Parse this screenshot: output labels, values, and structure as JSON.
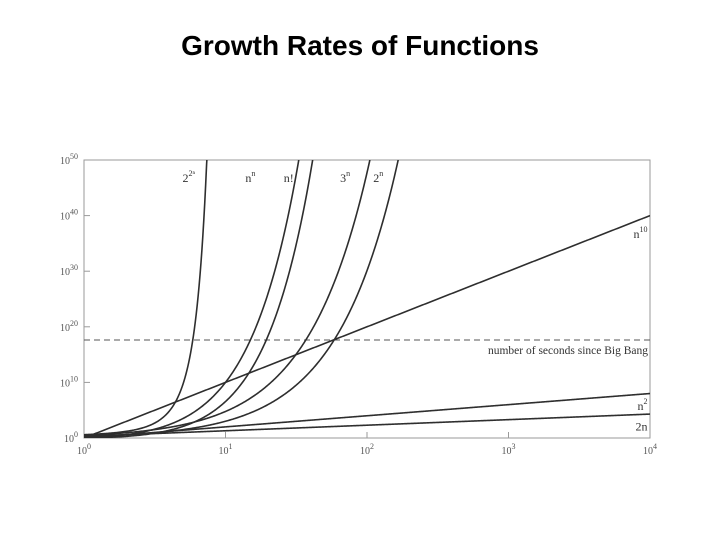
{
  "title": "Growth Rates of Functions",
  "chart_data": {
    "type": "line",
    "title": "Growth Rates of Functions",
    "xlabel": "",
    "ylabel": "",
    "xscale": "log",
    "yscale": "log",
    "xlim": [
      1,
      10000
    ],
    "ylim": [
      1,
      1e+50
    ],
    "x_ticks": [
      {
        "base": "10",
        "exp": "0",
        "value": 1
      },
      {
        "base": "10",
        "exp": "1",
        "value": 10
      },
      {
        "base": "10",
        "exp": "2",
        "value": 100
      },
      {
        "base": "10",
        "exp": "3",
        "value": 1000
      },
      {
        "base": "10",
        "exp": "4",
        "value": 10000
      }
    ],
    "y_ticks": [
      {
        "base": "10",
        "exp": "0",
        "value": 1
      },
      {
        "base": "10",
        "exp": "10",
        "value": 10000000000.0
      },
      {
        "base": "10",
        "exp": "20",
        "value": 1e+20
      },
      {
        "base": "10",
        "exp": "30",
        "value": 1e+30
      },
      {
        "base": "10",
        "exp": "40",
        "value": 1e+40
      },
      {
        "base": "10",
        "exp": "50",
        "value": 1e+50
      }
    ],
    "grid": false,
    "series": [
      {
        "name": "2^2^n",
        "base": "2",
        "exp": "2ⁿ",
        "label_n": 5.5
      },
      {
        "name": "n^n",
        "base": "n",
        "exp": "n",
        "label_n": 15
      },
      {
        "name": "n!",
        "base": "n!",
        "exp": "",
        "label_n": 28
      },
      {
        "name": "3^n",
        "base": "3",
        "exp": "n",
        "label_n": 70
      },
      {
        "name": "2^n",
        "base": "2",
        "exp": "n",
        "label_n": 120
      },
      {
        "name": "n^10",
        "base": "n",
        "exp": "10",
        "label_n": 9000
      },
      {
        "name": "n^2",
        "base": "n",
        "exp": "2",
        "label_n": 9000
      },
      {
        "name": "2n",
        "base": "2n",
        "exp": "",
        "label_n": 9000
      }
    ],
    "annotations": [
      {
        "text": "number of seconds since Big Bang",
        "y": 4.3e+17,
        "style": "dashed"
      }
    ]
  }
}
